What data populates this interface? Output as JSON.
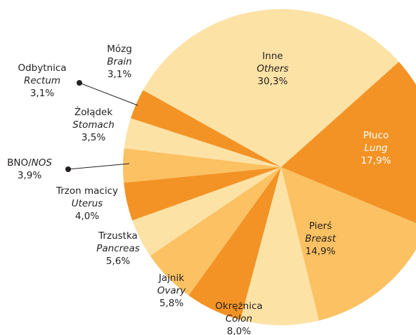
{
  "chart_data": {
    "type": "pie",
    "categories": [
      "Inne",
      "Płuco",
      "Pierś",
      "Okrężnica",
      "Jajnik",
      "Trzustka",
      "Trzon macicy",
      "BNO/",
      "Żołądek",
      "Odbytnica",
      "Mózg"
    ],
    "labels_en": [
      "Others",
      "Lung",
      "Breast",
      "Colon",
      "Ovary",
      "Pancreas",
      "Uterus",
      "NOS",
      "Stomach",
      "Rectum",
      "Brain"
    ],
    "values": [
      30.3,
      17.9,
      14.9,
      8.0,
      5.8,
      5.6,
      4.0,
      3.9,
      3.5,
      3.1,
      3.1
    ],
    "value_labels": [
      "30,3%",
      "17,9%",
      "14,9%",
      "8,0%",
      "5,8%",
      "5,6%",
      "4,0%",
      "3,9%",
      "3,5%",
      "3,1%",
      "3,1%"
    ],
    "colors": [
      "#fde2a6",
      "#f39325",
      "#fbc162",
      "#fde2a6",
      "#f39325",
      "#fbc162",
      "#fde2a6",
      "#f39325",
      "#fbc162",
      "#fde2a6",
      "#f39325"
    ]
  }
}
